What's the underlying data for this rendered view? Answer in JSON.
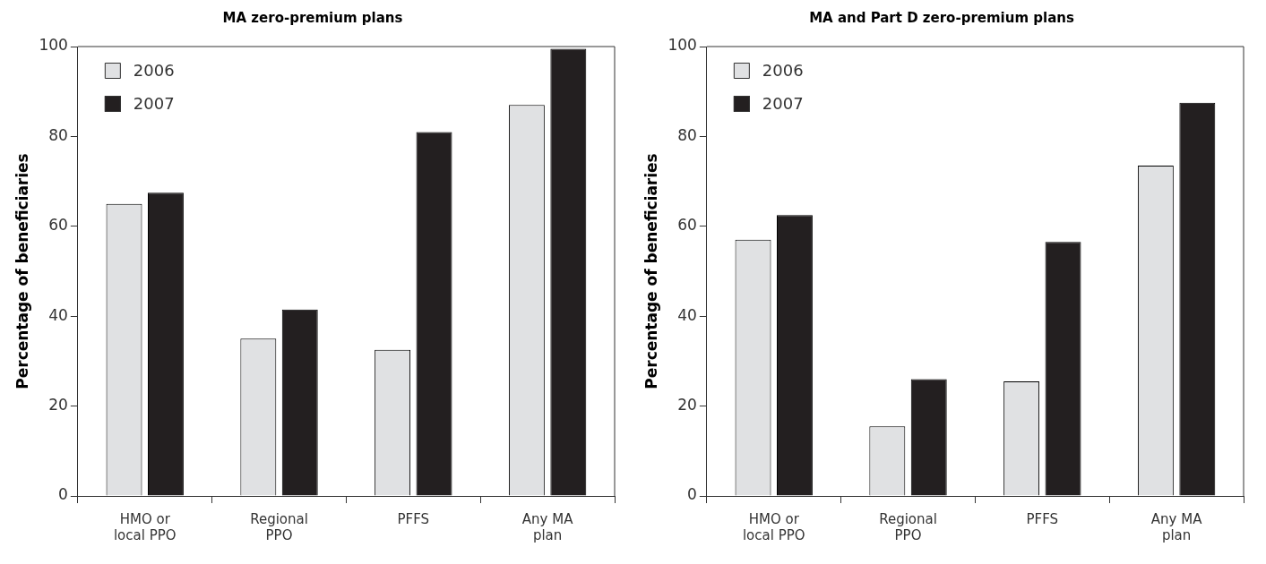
{
  "chart_data": [
    {
      "type": "bar",
      "title": "MA zero-premium plans",
      "ylabel": "Percentage of beneficiaries",
      "categories": [
        "HMO or local PPO",
        "Regional PPO",
        "PFFS",
        "Any MA plan"
      ],
      "series": [
        {
          "name": "2006",
          "color": "#e0e1e3",
          "values": [
            65,
            35,
            32.5,
            87
          ]
        },
        {
          "name": "2007",
          "color": "#231f20",
          "values": [
            67.5,
            41.5,
            81,
            99.5
          ]
        }
      ],
      "ylim": [
        0,
        100
      ],
      "yticks": [
        0,
        20,
        40,
        60,
        80,
        100
      ],
      "grid": false,
      "legend": "top left"
    },
    {
      "type": "bar",
      "title": "MA and Part D zero-premium plans",
      "ylabel": "Percentage of beneficiaries",
      "categories": [
        "HMO or local PPO",
        "Regional PPO",
        "PFFS",
        "Any MA plan"
      ],
      "series": [
        {
          "name": "2006",
          "color": "#e0e1e3",
          "values": [
            57,
            15.5,
            25.5,
            73.5
          ]
        },
        {
          "name": "2007",
          "color": "#231f20",
          "values": [
            62.5,
            26,
            56.5,
            87.5
          ]
        }
      ],
      "ylim": [
        0,
        100
      ],
      "yticks": [
        0,
        20,
        40,
        60,
        80,
        100
      ],
      "grid": false,
      "legend": "top left"
    }
  ]
}
